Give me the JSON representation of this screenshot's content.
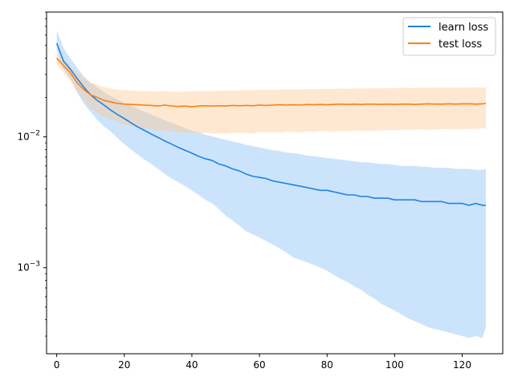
{
  "chart_data": {
    "type": "line",
    "title": "",
    "xlabel": "",
    "ylabel": "",
    "xlim": [
      -3,
      132
    ],
    "ylim": [
      0.00022,
      0.09
    ],
    "yscale": "log",
    "grid": false,
    "legend_position": "top-right",
    "x_ticks": [
      0,
      20,
      40,
      60,
      80,
      100,
      120
    ],
    "y_ticks": [
      {
        "value": 0.001,
        "base": "10",
        "exp": "−3"
      },
      {
        "value": 0.01,
        "base": "10",
        "exp": "−2"
      }
    ],
    "series": [
      {
        "name": "learn loss",
        "color": "#1f82e8",
        "band_color": "#7fbcf5",
        "x": [
          0,
          2,
          4,
          6,
          8,
          10,
          12,
          14,
          16,
          18,
          20,
          22,
          24,
          26,
          28,
          30,
          32,
          34,
          36,
          38,
          40,
          42,
          44,
          46,
          48,
          50,
          52,
          54,
          56,
          58,
          60,
          62,
          64,
          66,
          68,
          70,
          72,
          74,
          76,
          78,
          80,
          82,
          84,
          86,
          88,
          90,
          92,
          94,
          96,
          98,
          100,
          102,
          104,
          106,
          108,
          110,
          112,
          114,
          116,
          118,
          120,
          122,
          124,
          126,
          127
        ],
        "values": [
          0.052,
          0.038,
          0.033,
          0.028,
          0.024,
          0.021,
          0.019,
          0.0175,
          0.016,
          0.0148,
          0.0138,
          0.0128,
          0.0119,
          0.0112,
          0.0105,
          0.0099,
          0.0093,
          0.0088,
          0.0083,
          0.0079,
          0.0075,
          0.0071,
          0.0068,
          0.0066,
          0.0062,
          0.006,
          0.0057,
          0.0055,
          0.0052,
          0.005,
          0.0049,
          0.0048,
          0.0046,
          0.0045,
          0.0044,
          0.0043,
          0.0042,
          0.0041,
          0.004,
          0.0039,
          0.0039,
          0.0038,
          0.0037,
          0.0036,
          0.0036,
          0.0035,
          0.0035,
          0.0034,
          0.0034,
          0.0034,
          0.0033,
          0.0033,
          0.0033,
          0.0033,
          0.0032,
          0.0032,
          0.0032,
          0.0032,
          0.0031,
          0.0031,
          0.0031,
          0.003,
          0.0031,
          0.003,
          0.003
        ],
        "lower": [
          0.046,
          0.033,
          0.028,
          0.022,
          0.018,
          0.0155,
          0.0135,
          0.012,
          0.011,
          0.0098,
          0.0088,
          0.008,
          0.0073,
          0.0067,
          0.0062,
          0.0057,
          0.0052,
          0.0048,
          0.0045,
          0.0042,
          0.0039,
          0.0036,
          0.0033,
          0.0031,
          0.0028,
          0.0025,
          0.0023,
          0.0021,
          0.0019,
          0.0018,
          0.0017,
          0.0016,
          0.0015,
          0.0014,
          0.0013,
          0.0012,
          0.00115,
          0.0011,
          0.00105,
          0.001,
          0.00095,
          0.00088,
          0.00082,
          0.00078,
          0.00072,
          0.00068,
          0.00062,
          0.00058,
          0.00053,
          0.0005,
          0.00047,
          0.00044,
          0.00041,
          0.00039,
          0.00037,
          0.00035,
          0.00034,
          0.00033,
          0.00032,
          0.00031,
          0.0003,
          0.00029,
          0.0003,
          0.00029,
          0.00035
        ],
        "upper": [
          0.065,
          0.048,
          0.04,
          0.034,
          0.029,
          0.026,
          0.024,
          0.022,
          0.0205,
          0.0193,
          0.0182,
          0.0173,
          0.0164,
          0.0156,
          0.0148,
          0.0141,
          0.0134,
          0.0128,
          0.0122,
          0.0117,
          0.0112,
          0.0108,
          0.0104,
          0.0101,
          0.0098,
          0.0095,
          0.0092,
          0.009,
          0.0087,
          0.0085,
          0.0083,
          0.0081,
          0.0079,
          0.0078,
          0.0076,
          0.0075,
          0.0074,
          0.0072,
          0.0071,
          0.007,
          0.0069,
          0.0068,
          0.0067,
          0.0066,
          0.0065,
          0.0064,
          0.0064,
          0.0063,
          0.0062,
          0.0062,
          0.0061,
          0.006,
          0.006,
          0.006,
          0.0059,
          0.0059,
          0.0058,
          0.0058,
          0.0058,
          0.0057,
          0.0057,
          0.0057,
          0.0056,
          0.0056,
          0.0057
        ]
      },
      {
        "name": "test loss",
        "color": "#ff7f0e",
        "band_color": "#ffc58f",
        "x": [
          0,
          2,
          4,
          6,
          8,
          10,
          12,
          14,
          16,
          18,
          20,
          22,
          24,
          26,
          28,
          30,
          32,
          34,
          36,
          38,
          40,
          42,
          44,
          46,
          48,
          50,
          52,
          54,
          56,
          58,
          60,
          62,
          64,
          66,
          68,
          70,
          72,
          74,
          76,
          78,
          80,
          82,
          84,
          86,
          88,
          90,
          92,
          94,
          96,
          98,
          100,
          102,
          104,
          106,
          108,
          110,
          112,
          114,
          116,
          118,
          120,
          122,
          124,
          126,
          127
        ],
        "values": [
          0.04,
          0.035,
          0.031,
          0.026,
          0.023,
          0.021,
          0.02,
          0.019,
          0.0185,
          0.018,
          0.0178,
          0.0177,
          0.0176,
          0.0175,
          0.0174,
          0.0172,
          0.0175,
          0.0172,
          0.0171,
          0.0172,
          0.017,
          0.0172,
          0.0173,
          0.0172,
          0.0173,
          0.0172,
          0.0174,
          0.0173,
          0.0174,
          0.0173,
          0.0175,
          0.0174,
          0.0175,
          0.0176,
          0.0175,
          0.0176,
          0.0175,
          0.0177,
          0.0176,
          0.0177,
          0.0176,
          0.0177,
          0.0178,
          0.0177,
          0.0178,
          0.0177,
          0.0178,
          0.0178,
          0.0177,
          0.0178,
          0.0177,
          0.0178,
          0.0178,
          0.0177,
          0.0178,
          0.0179,
          0.0178,
          0.0178,
          0.0179,
          0.0178,
          0.0179,
          0.0179,
          0.0178,
          0.0179,
          0.018
        ],
        "lower": [
          0.036,
          0.031,
          0.027,
          0.022,
          0.019,
          0.0165,
          0.0152,
          0.0142,
          0.0135,
          0.013,
          0.0125,
          0.012,
          0.0118,
          0.0116,
          0.0114,
          0.0112,
          0.0111,
          0.011,
          0.0108,
          0.0107,
          0.0108,
          0.0106,
          0.0107,
          0.0106,
          0.0107,
          0.0106,
          0.0108,
          0.0107,
          0.0108,
          0.0106,
          0.0109,
          0.0108,
          0.0109,
          0.0108,
          0.011,
          0.0109,
          0.0108,
          0.011,
          0.0109,
          0.0111,
          0.011,
          0.0109,
          0.0111,
          0.011,
          0.0112,
          0.0111,
          0.0112,
          0.0111,
          0.0112,
          0.0113,
          0.0112,
          0.0113,
          0.0114,
          0.0113,
          0.0114,
          0.0113,
          0.0114,
          0.0115,
          0.0114,
          0.0115,
          0.0114,
          0.0115,
          0.0115,
          0.0116,
          0.0116
        ],
        "upper": [
          0.044,
          0.039,
          0.035,
          0.031,
          0.028,
          0.026,
          0.025,
          0.024,
          0.0235,
          0.023,
          0.0228,
          0.0226,
          0.0225,
          0.0224,
          0.0223,
          0.0222,
          0.0224,
          0.0222,
          0.0221,
          0.0223,
          0.0222,
          0.0224,
          0.0225,
          0.0223,
          0.0226,
          0.0225,
          0.0227,
          0.0226,
          0.0228,
          0.0227,
          0.0229,
          0.0228,
          0.023,
          0.0229,
          0.0231,
          0.023,
          0.0231,
          0.0232,
          0.0231,
          0.0233,
          0.0232,
          0.0233,
          0.0234,
          0.0233,
          0.0235,
          0.0234,
          0.0235,
          0.0236,
          0.0235,
          0.0236,
          0.0236,
          0.0237,
          0.0237,
          0.0236,
          0.0238,
          0.0237,
          0.0238,
          0.0238,
          0.0237,
          0.0239,
          0.0238,
          0.0239,
          0.0239,
          0.0238,
          0.024
        ]
      }
    ]
  }
}
